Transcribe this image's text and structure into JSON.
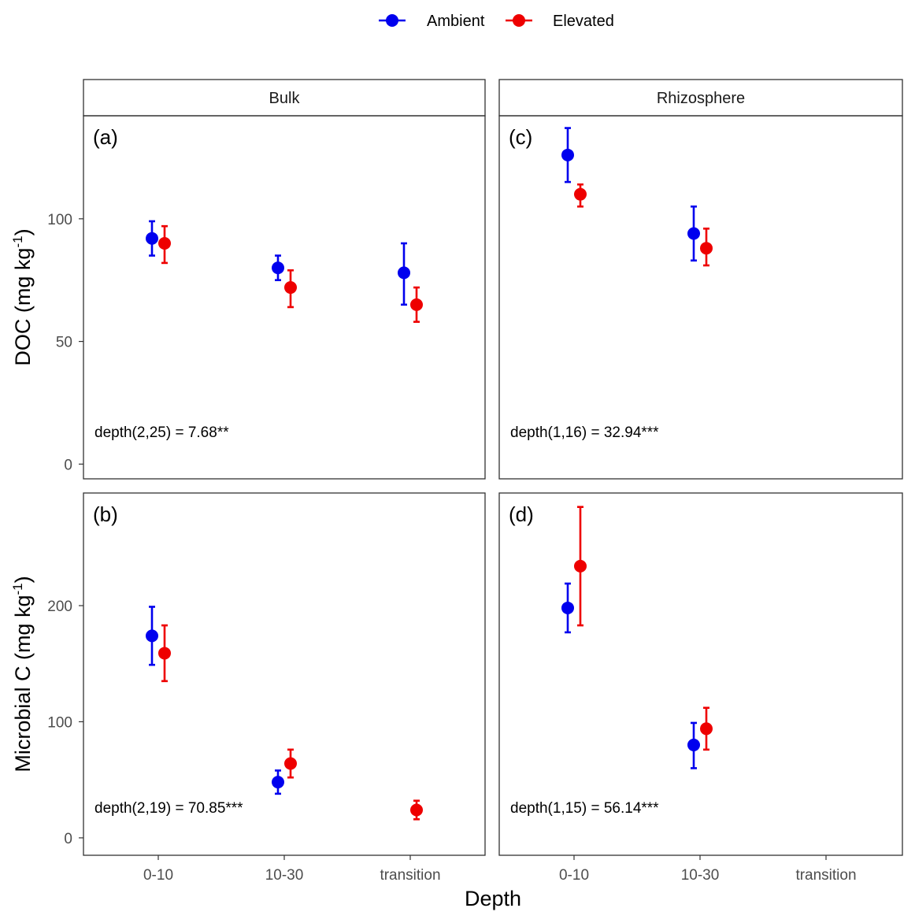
{
  "legend": {
    "entries": [
      {
        "label": "Ambient",
        "color": "#0000ee"
      },
      {
        "label": "Elevated",
        "color": "#ee0000"
      }
    ]
  },
  "chart_data": {
    "type": "scatter",
    "x_title": "Depth",
    "x_categories": [
      "0-10",
      "10-30",
      "transition"
    ],
    "columns": [
      "Bulk",
      "Rhizosphere"
    ],
    "rows": [
      {
        "key": "doc",
        "y_title": "DOC (mg kg",
        "y_title_sup": "-1",
        "y_title_end": ")",
        "ylim": [
          -6,
          142
        ],
        "yticks": [
          0,
          50,
          100
        ]
      },
      {
        "key": "mic",
        "y_title": "Microbial C (mg kg",
        "y_title_sup": "-1",
        "y_title_end": ")",
        "ylim": [
          -15,
          297
        ],
        "yticks": [
          0,
          100,
          200
        ]
      }
    ],
    "panels": [
      {
        "tag": "(a)",
        "row": "doc",
        "column": "Bulk",
        "annotation": "depth(2,25) = 7.68**",
        "series": [
          {
            "name": "Ambient",
            "points": [
              {
                "x": "0-10",
                "y": 92,
                "lo": 85,
                "hi": 99
              },
              {
                "x": "10-30",
                "y": 80,
                "lo": 75,
                "hi": 85
              },
              {
                "x": "transition",
                "y": 78,
                "lo": 65,
                "hi": 90
              }
            ]
          },
          {
            "name": "Elevated",
            "points": [
              {
                "x": "0-10",
                "y": 90,
                "lo": 82,
                "hi": 97
              },
              {
                "x": "10-30",
                "y": 72,
                "lo": 64,
                "hi": 79
              },
              {
                "x": "transition",
                "y": 65,
                "lo": 58,
                "hi": 72
              }
            ]
          }
        ]
      },
      {
        "tag": "(c)",
        "row": "doc",
        "column": "Rhizosphere",
        "annotation": "depth(1,16) = 32.94***",
        "series": [
          {
            "name": "Ambient",
            "points": [
              {
                "x": "0-10",
                "y": 126,
                "lo": 115,
                "hi": 137
              },
              {
                "x": "10-30",
                "y": 94,
                "lo": 83,
                "hi": 105
              }
            ]
          },
          {
            "name": "Elevated",
            "points": [
              {
                "x": "0-10",
                "y": 110,
                "lo": 105,
                "hi": 114
              },
              {
                "x": "10-30",
                "y": 88,
                "lo": 81,
                "hi": 96
              }
            ]
          }
        ]
      },
      {
        "tag": "(b)",
        "row": "mic",
        "column": "Bulk",
        "annotation": "depth(2,19) = 70.85***",
        "series": [
          {
            "name": "Ambient",
            "points": [
              {
                "x": "0-10",
                "y": 174,
                "lo": 149,
                "hi": 199
              },
              {
                "x": "10-30",
                "y": 48,
                "lo": 38,
                "hi": 58
              }
            ]
          },
          {
            "name": "Elevated",
            "points": [
              {
                "x": "0-10",
                "y": 159,
                "lo": 135,
                "hi": 183
              },
              {
                "x": "10-30",
                "y": 64,
                "lo": 52,
                "hi": 76
              },
              {
                "x": "transition",
                "y": 24,
                "lo": 16,
                "hi": 32
              }
            ]
          }
        ]
      },
      {
        "tag": "(d)",
        "row": "mic",
        "column": "Rhizosphere",
        "annotation": "depth(1,15) = 56.14***",
        "series": [
          {
            "name": "Ambient",
            "points": [
              {
                "x": "0-10",
                "y": 198,
                "lo": 177,
                "hi": 219
              },
              {
                "x": "10-30",
                "y": 80,
                "lo": 60,
                "hi": 99
              }
            ]
          },
          {
            "name": "Elevated",
            "points": [
              {
                "x": "0-10",
                "y": 234,
                "lo": 183,
                "hi": 285
              },
              {
                "x": "10-30",
                "y": 94,
                "lo": 76,
                "hi": 112
              }
            ]
          }
        ]
      }
    ]
  }
}
